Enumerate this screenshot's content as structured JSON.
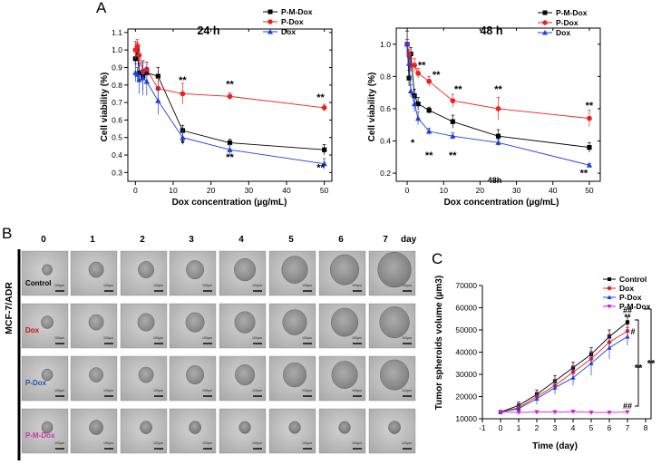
{
  "panel_letters": {
    "a": "A",
    "b": "B",
    "c": "C"
  },
  "chart_data": [
    {
      "id": "a1",
      "type": "line",
      "title": "24 h",
      "xlabel": "Dox concentration (µg/mL)",
      "ylabel": "Cell viability (%)",
      "xlim": [
        -2,
        52
      ],
      "ylim": [
        0.25,
        1.12
      ],
      "xticks": [
        0,
        10,
        20,
        30,
        40,
        50
      ],
      "yticks": [
        0.3,
        0.4,
        0.5,
        0.6,
        0.7,
        0.8,
        0.9,
        1.0,
        1.1
      ],
      "ytick_labels": [
        "0.3",
        "0.4",
        "0.5",
        "0.6",
        "0.7",
        "0.8",
        "0.9",
        "1.0",
        "1.1"
      ],
      "x": [
        0,
        0.5,
        1,
        2,
        3,
        6,
        12.5,
        25,
        50
      ],
      "series": [
        {
          "name": "P-M-Dox",
          "color": "#000000",
          "marker": "square",
          "values": [
            0.95,
            1.0,
            0.87,
            0.85,
            0.87,
            0.85,
            0.54,
            0.47,
            0.43
          ],
          "errors": [
            0.04,
            0.04,
            0.05,
            0.08,
            0.06,
            0.05,
            0.03,
            0.02,
            0.03
          ]
        },
        {
          "name": "P-Dox",
          "color": "#e8231f",
          "marker": "circle",
          "values": [
            1.0,
            1.02,
            0.97,
            0.88,
            0.89,
            0.78,
            0.75,
            0.735,
            0.67
          ],
          "errors": [
            0.05,
            0.04,
            0.06,
            0.05,
            0.04,
            0.06,
            0.06,
            0.02,
            0.02
          ]
        },
        {
          "name": "Dox",
          "color": "#1f3fd6",
          "marker": "triangle",
          "values": [
            0.87,
            0.86,
            0.83,
            0.84,
            0.82,
            0.71,
            0.5,
            0.43,
            0.35
          ],
          "errors": [
            0.05,
            0.04,
            0.08,
            0.1,
            0.08,
            0.08,
            0.04,
            0.03,
            0.03
          ]
        }
      ],
      "annotations": [
        {
          "text": "**",
          "x": 12.5,
          "y": 0.81
        },
        {
          "text": "*",
          "x": 12.5,
          "y": 0.45
        },
        {
          "text": "**",
          "x": 25,
          "y": 0.785
        },
        {
          "text": "**",
          "x": 25,
          "y": 0.37
        },
        {
          "text": "**",
          "x": 49,
          "y": 0.71
        },
        {
          "text": "**",
          "x": 49,
          "y": 0.31
        }
      ]
    },
    {
      "id": "a2",
      "type": "line",
      "title": "48 h",
      "xlabel": "Dox concentration (µg/mL)",
      "ylabel": "Cell viability (%)",
      "xlim": [
        -3,
        53
      ],
      "ylim": [
        0.15,
        1.1
      ],
      "xticks": [
        0,
        10,
        20,
        30,
        40,
        50
      ],
      "yticks": [
        0.2,
        0.4,
        0.6,
        0.8,
        1.0
      ],
      "ytick_labels": [
        "0.2",
        "0.4",
        "0.6",
        "0.8",
        "1.0"
      ],
      "x": [
        0,
        0.5,
        1,
        2,
        3,
        6,
        12.5,
        25,
        50
      ],
      "series": [
        {
          "name": "P-M-Dox",
          "color": "#000000",
          "marker": "square",
          "values": [
            1.0,
            0.79,
            0.94,
            0.68,
            0.63,
            0.59,
            0.52,
            0.43,
            0.36
          ],
          "errors": [
            0.08,
            0.05,
            0.04,
            0.04,
            0.04,
            0.02,
            0.04,
            0.04,
            0.03
          ]
        },
        {
          "name": "P-Dox",
          "color": "#e8231f",
          "marker": "circle",
          "values": [
            1.0,
            0.94,
            0.87,
            0.87,
            0.82,
            0.77,
            0.65,
            0.6,
            0.54
          ],
          "errors": [
            0.03,
            0.03,
            0.04,
            0.04,
            0.03,
            0.03,
            0.04,
            0.07,
            0.05
          ]
        },
        {
          "name": "Dox",
          "color": "#1f3fd6",
          "marker": "triangle",
          "values": [
            1.0,
            0.88,
            0.71,
            0.63,
            0.54,
            0.46,
            0.43,
            0.39,
            0.25
          ],
          "errors": [
            0.03,
            0.04,
            0.04,
            0.05,
            0.04,
            0.02,
            0.02,
            0.02,
            0.01
          ]
        }
      ],
      "annotations": [
        {
          "text": "**",
          "x": 4,
          "y": 0.85
        },
        {
          "text": "**",
          "x": 8,
          "y": 0.79
        },
        {
          "text": "**",
          "x": 14,
          "y": 0.7
        },
        {
          "text": "**",
          "x": 25,
          "y": 0.7
        },
        {
          "text": "**",
          "x": 50,
          "y": 0.6
        },
        {
          "text": "*",
          "x": 1.5,
          "y": 0.37
        },
        {
          "text": "**",
          "x": 6,
          "y": 0.29
        },
        {
          "text": "**",
          "x": 12.5,
          "y": 0.29
        },
        {
          "text": "**",
          "x": 48.5,
          "y": 0.18
        },
        {
          "text": "48h",
          "x": 24,
          "y": 0.14
        }
      ]
    },
    {
      "id": "c",
      "type": "line",
      "title": "",
      "xlabel": "Time (day)",
      "ylabel": "Tumor spheroids volume (µm3)",
      "xlim": [
        -1,
        8
      ],
      "ylim": [
        10000,
        70000
      ],
      "xticks": [
        -1,
        0,
        1,
        2,
        3,
        4,
        5,
        6,
        7,
        8
      ],
      "yticks": [
        10000,
        20000,
        30000,
        40000,
        50000,
        60000,
        70000
      ],
      "ytick_labels": [
        "10000",
        "20000",
        "30000",
        "40000",
        "50000",
        "60000",
        "70000"
      ],
      "x": [
        0,
        1,
        2,
        3,
        4,
        5,
        6,
        7
      ],
      "series": [
        {
          "name": "Control",
          "color": "#000000",
          "marker": "square",
          "values": [
            13000,
            16000,
            21000,
            27000,
            33000,
            39000,
            47000,
            53500
          ],
          "errors": [
            800,
            1500,
            2000,
            2500,
            2500,
            3000,
            3000,
            2500
          ]
        },
        {
          "name": "Dox",
          "color": "#e8231f",
          "marker": "circle",
          "values": [
            13000,
            15000,
            20000,
            25000,
            31000,
            37000,
            44500,
            49500
          ],
          "errors": [
            800,
            1500,
            2000,
            2500,
            2500,
            3000,
            3500,
            3000
          ]
        },
        {
          "name": "P-Dox",
          "color": "#1f3fd6",
          "marker": "triangle",
          "values": [
            13000,
            14500,
            19000,
            24000,
            28500,
            35000,
            42000,
            47000
          ],
          "errors": [
            800,
            1500,
            2500,
            3000,
            3500,
            5500,
            5000,
            4000
          ]
        },
        {
          "name": "P-M-Dox",
          "color": "#d020d0",
          "marker": "triangle-down",
          "values": [
            13000,
            12800,
            13000,
            13000,
            13200,
            12800,
            12800,
            13000
          ],
          "errors": [
            500,
            400,
            500,
            500,
            500,
            500,
            500,
            500
          ]
        }
      ],
      "annotations": [
        {
          "text": "##",
          "x": 7,
          "y": 57500,
          "size": "small"
        },
        {
          "text": "**",
          "x": 7,
          "y": 54500,
          "size": "small"
        },
        {
          "text": "#",
          "x": 7.3,
          "y": 48000,
          "size": "small"
        },
        {
          "text": "##",
          "x": 7,
          "y": 14500,
          "size": "small"
        },
        {
          "text": "**",
          "x": 7.6,
          "y": 31500
        },
        {
          "text": "**",
          "x": 8.3,
          "y": 33500
        }
      ]
    }
  ],
  "panel_b": {
    "side_label": "MCF-7/ADR",
    "days": [
      "0",
      "1",
      "2",
      "3",
      "4",
      "5",
      "6",
      "7"
    ],
    "day_unit": "day",
    "rows": [
      {
        "name": "Control",
        "color": "#000000",
        "sizes": [
          0.22,
          0.32,
          0.34,
          0.38,
          0.46,
          0.56,
          0.62,
          0.72
        ],
        "dark": [
          0.55,
          0.5,
          0.5,
          0.45,
          0.45,
          0.45,
          0.45,
          0.5
        ]
      },
      {
        "name": "Dox",
        "color": "#cc1111",
        "sizes": [
          0.26,
          0.32,
          0.36,
          0.4,
          0.44,
          0.52,
          0.58,
          0.64
        ],
        "dark": [
          0.5,
          0.45,
          0.45,
          0.45,
          0.45,
          0.45,
          0.45,
          0.45
        ]
      },
      {
        "name": "P-Dox",
        "color": "#2255aa",
        "sizes": [
          0.24,
          0.3,
          0.32,
          0.38,
          0.42,
          0.5,
          0.56,
          0.62
        ],
        "dark": [
          0.5,
          0.45,
          0.45,
          0.45,
          0.45,
          0.45,
          0.45,
          0.45
        ]
      },
      {
        "name": "P-M-Dox",
        "color": "#cc33aa",
        "sizes": [
          0.24,
          0.3,
          0.26,
          0.26,
          0.25,
          0.25,
          0.25,
          0.26
        ],
        "dark": [
          0.55,
          0.6,
          0.6,
          0.65,
          0.65,
          0.65,
          0.65,
          0.65
        ]
      }
    ],
    "scale_labels": [
      "100µm",
      "100µm",
      "100µm",
      "100µm",
      "100µm",
      "100µm",
      "100µm",
      "100µm"
    ]
  }
}
